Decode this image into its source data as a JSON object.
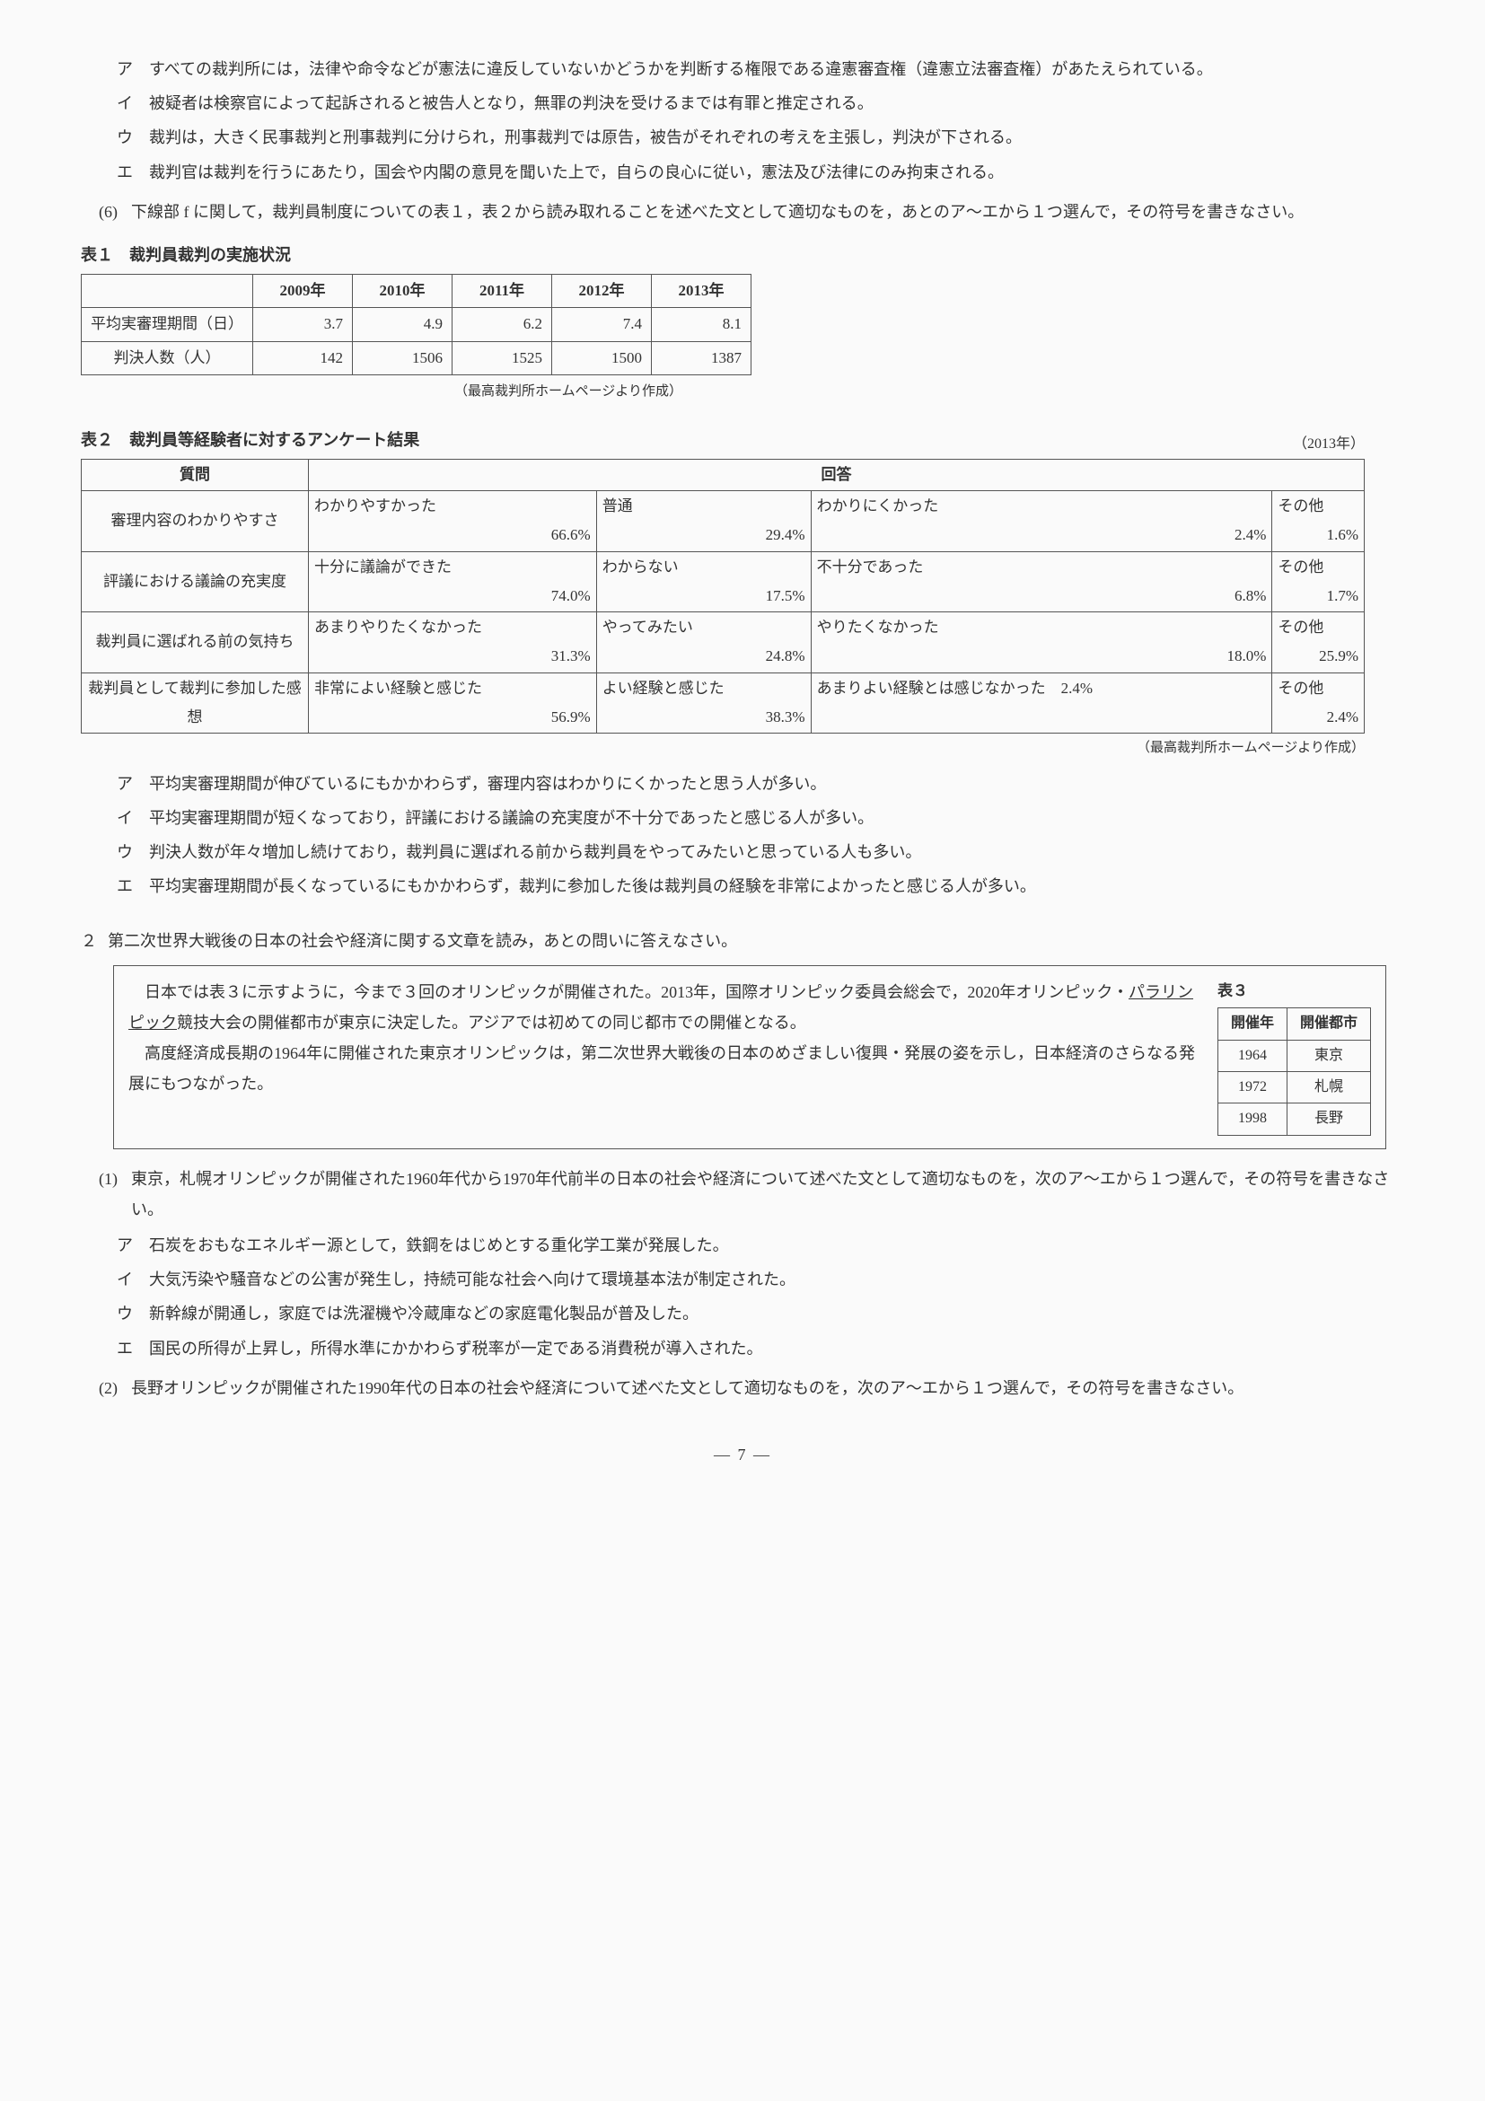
{
  "q5_choices": [
    {
      "m": "ア",
      "t": "すべての裁判所には，法律や命令などが憲法に違反していないかどうかを判断する権限である違憲審査権（違憲立法審査権）があたえられている。"
    },
    {
      "m": "イ",
      "t": "被疑者は検察官によって起訴されると被告人となり，無罪の判決を受けるまでは有罪と推定される。"
    },
    {
      "m": "ウ",
      "t": "裁判は，大きく民事裁判と刑事裁判に分けられ，刑事裁判では原告，被告がそれぞれの考えを主張し，判決が下される。"
    },
    {
      "m": "エ",
      "t": "裁判官は裁判を行うにあたり，国会や内閣の意見を聞いた上で，自らの良心に従い，憲法及び法律にのみ拘束される。"
    }
  ],
  "q6": {
    "num": "(6)",
    "text": "下線部 f に関して，裁判員制度についての表１，表２から読み取れることを述べた文として適切なものを，あとのア〜エから１つ選んで，その符号を書きなさい。"
  },
  "table1": {
    "title": "表１　裁判員裁判の実施状況",
    "years": [
      "2009年",
      "2010年",
      "2011年",
      "2012年",
      "2013年"
    ],
    "rows": [
      {
        "label": "平均実審理期間（日）",
        "vals": [
          "3.7",
          "4.9",
          "6.2",
          "7.4",
          "8.1"
        ]
      },
      {
        "label": "判決人数（人）",
        "vals": [
          "142",
          "1506",
          "1525",
          "1500",
          "1387"
        ]
      }
    ],
    "src": "（最高裁判所ホームページより作成）"
  },
  "table2": {
    "title": "表２　裁判員等経験者に対するアンケート結果",
    "year": "（2013年）",
    "hdr_q": "質問",
    "hdr_a": "回答",
    "rows": [
      {
        "q": "審理内容のわかりやすさ",
        "a": [
          {
            "l": "わかりやすかった",
            "v": "66.6%"
          },
          {
            "l": "普通",
            "v": "29.4%"
          },
          {
            "l": "わかりにくかった",
            "v": "2.4%"
          },
          {
            "l": "その他",
            "v": "1.6%"
          }
        ]
      },
      {
        "q": "評議における議論の充実度",
        "a": [
          {
            "l": "十分に議論ができた",
            "v": "74.0%"
          },
          {
            "l": "わからない",
            "v": "17.5%"
          },
          {
            "l": "不十分であった",
            "v": "6.8%"
          },
          {
            "l": "その他",
            "v": "1.7%"
          }
        ]
      },
      {
        "q": "裁判員に選ばれる前の気持ち",
        "a": [
          {
            "l": "あまりやりたくなかった",
            "v": "31.3%"
          },
          {
            "l": "やってみたい",
            "v": "24.8%"
          },
          {
            "l": "やりたくなかった",
            "v": "18.0%"
          },
          {
            "l": "その他",
            "v": "25.9%"
          }
        ]
      },
      {
        "q": "裁判員として裁判に参加した感想",
        "a": [
          {
            "l": "非常によい経験と感じた",
            "v": "56.9%"
          },
          {
            "l": "よい経験と感じた",
            "v": "38.3%"
          },
          {
            "l": "あまりよい経験とは感じなかった　2.4%",
            "v": ""
          },
          {
            "l": "その他",
            "v": "2.4%"
          }
        ]
      }
    ],
    "src": "（最高裁判所ホームページより作成）"
  },
  "q6_choices": [
    {
      "m": "ア",
      "t": "平均実審理期間が伸びているにもかかわらず，審理内容はわかりにくかったと思う人が多い。"
    },
    {
      "m": "イ",
      "t": "平均実審理期間が短くなっており，評議における議論の充実度が不十分であったと感じる人が多い。"
    },
    {
      "m": "ウ",
      "t": "判決人数が年々増加し続けており，裁判員に選ばれる前から裁判員をやってみたいと思っている人も多い。"
    },
    {
      "m": "エ",
      "t": "平均実審理期間が長くなっているにもかかわらず，裁判に参加した後は裁判員の経験を非常によかったと感じる人が多い。"
    }
  ],
  "sec2": {
    "num": "２",
    "head": "第二次世界大戦後の日本の社会や経済に関する文章を読み，あとの問いに答えなさい。",
    "p1_a": "日本では表３に示すように，今まで３回のオリンピックが開催された。2013年，国際オリンピック委員会総会で，2020年オリンピック・",
    "p1_u": "パラリンピック",
    "p1_b": "競技大会の開催都市が東京に決定した。アジアでは初めての同じ都市での開催となる。",
    "p2": "高度経済成長期の1964年に開催された東京オリンピックは，第二次世界大戦後の日本のめざましい復興・発展の姿を示し，日本経済のさらなる発展にもつながった。"
  },
  "table3": {
    "title": "表３",
    "hdr": [
      "開催年",
      "開催都市"
    ],
    "rows": [
      [
        "1964",
        "東京"
      ],
      [
        "1972",
        "札幌"
      ],
      [
        "1998",
        "長野"
      ]
    ]
  },
  "q2_1": {
    "num": "(1)",
    "text": "東京，札幌オリンピックが開催された1960年代から1970年代前半の日本の社会や経済について述べた文として適切なものを，次のア〜エから１つ選んで，その符号を書きなさい。",
    "choices": [
      {
        "m": "ア",
        "t": "石炭をおもなエネルギー源として，鉄鋼をはじめとする重化学工業が発展した。"
      },
      {
        "m": "イ",
        "t": "大気汚染や騒音などの公害が発生し，持続可能な社会へ向けて環境基本法が制定された。"
      },
      {
        "m": "ウ",
        "t": "新幹線が開通し，家庭では洗濯機や冷蔵庫などの家庭電化製品が普及した。"
      },
      {
        "m": "エ",
        "t": "国民の所得が上昇し，所得水準にかかわらず税率が一定である消費税が導入された。"
      }
    ]
  },
  "q2_2": {
    "num": "(2)",
    "text": "長野オリンピックが開催された1990年代の日本の社会や経済について述べた文として適切なものを，次のア〜エから１つ選んで，その符号を書きなさい。"
  },
  "page": "— 7 —"
}
